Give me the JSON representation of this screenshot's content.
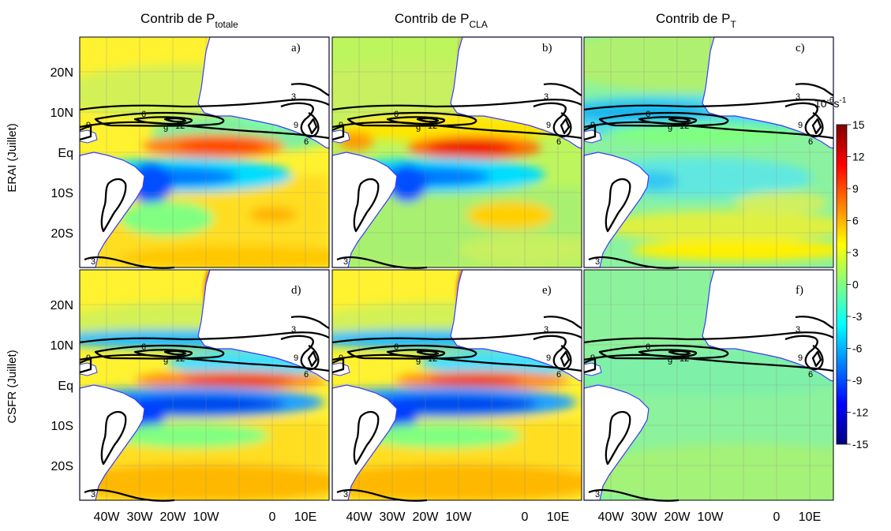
{
  "column_titles": [
    {
      "main": "Contrib de P",
      "sub": "totale"
    },
    {
      "main": "Contrib de P",
      "sub": "CLA"
    },
    {
      "main": "Contrib de P",
      "sub": "T"
    }
  ],
  "row_labels": [
    "ERAI (Juillet)",
    "CSFR (Juillet)"
  ],
  "panel_labels": [
    "a)",
    "b)",
    "c)",
    "d)",
    "e)",
    "f)"
  ],
  "x_ticks": [
    "40W",
    "30W",
    "20W",
    "10W",
    "0",
    "10E"
  ],
  "y_ticks": [
    "20N",
    "10N",
    "Eq",
    "10S",
    "20S"
  ],
  "contour_labels": {
    "c3": "3",
    "c6": "6",
    "c9": "9",
    "c12": "12"
  },
  "colorbar": {
    "unit": {
      "base": "10",
      "exp1": "-6",
      "mid": "s",
      "exp2": "-1"
    },
    "ticks": [
      "15",
      "12",
      "9",
      "6",
      "3",
      "0",
      "-3",
      "-6",
      "-9",
      "-12",
      "-15"
    ]
  },
  "chart_data": {
    "type": "heatmap",
    "layout": "2 rows x 3 columns of map panels",
    "x_range_deg": [
      -48,
      16
    ],
    "y_range_deg": [
      -28,
      28
    ],
    "colorbar_range": [
      -15,
      15
    ],
    "colorbar_step": 3,
    "colormap": [
      "#00007f",
      "#0000ff",
      "#0080ff",
      "#00ffff",
      "#80ff80",
      "#ffff00",
      "#ff8000",
      "#ff0000",
      "#7f0000"
    ],
    "land_color": "#ffffff",
    "coast_color": "#3a3aff",
    "contour_color": "#000000",
    "contour_levels": [
      3,
      6,
      9,
      12
    ],
    "grid": true
  }
}
